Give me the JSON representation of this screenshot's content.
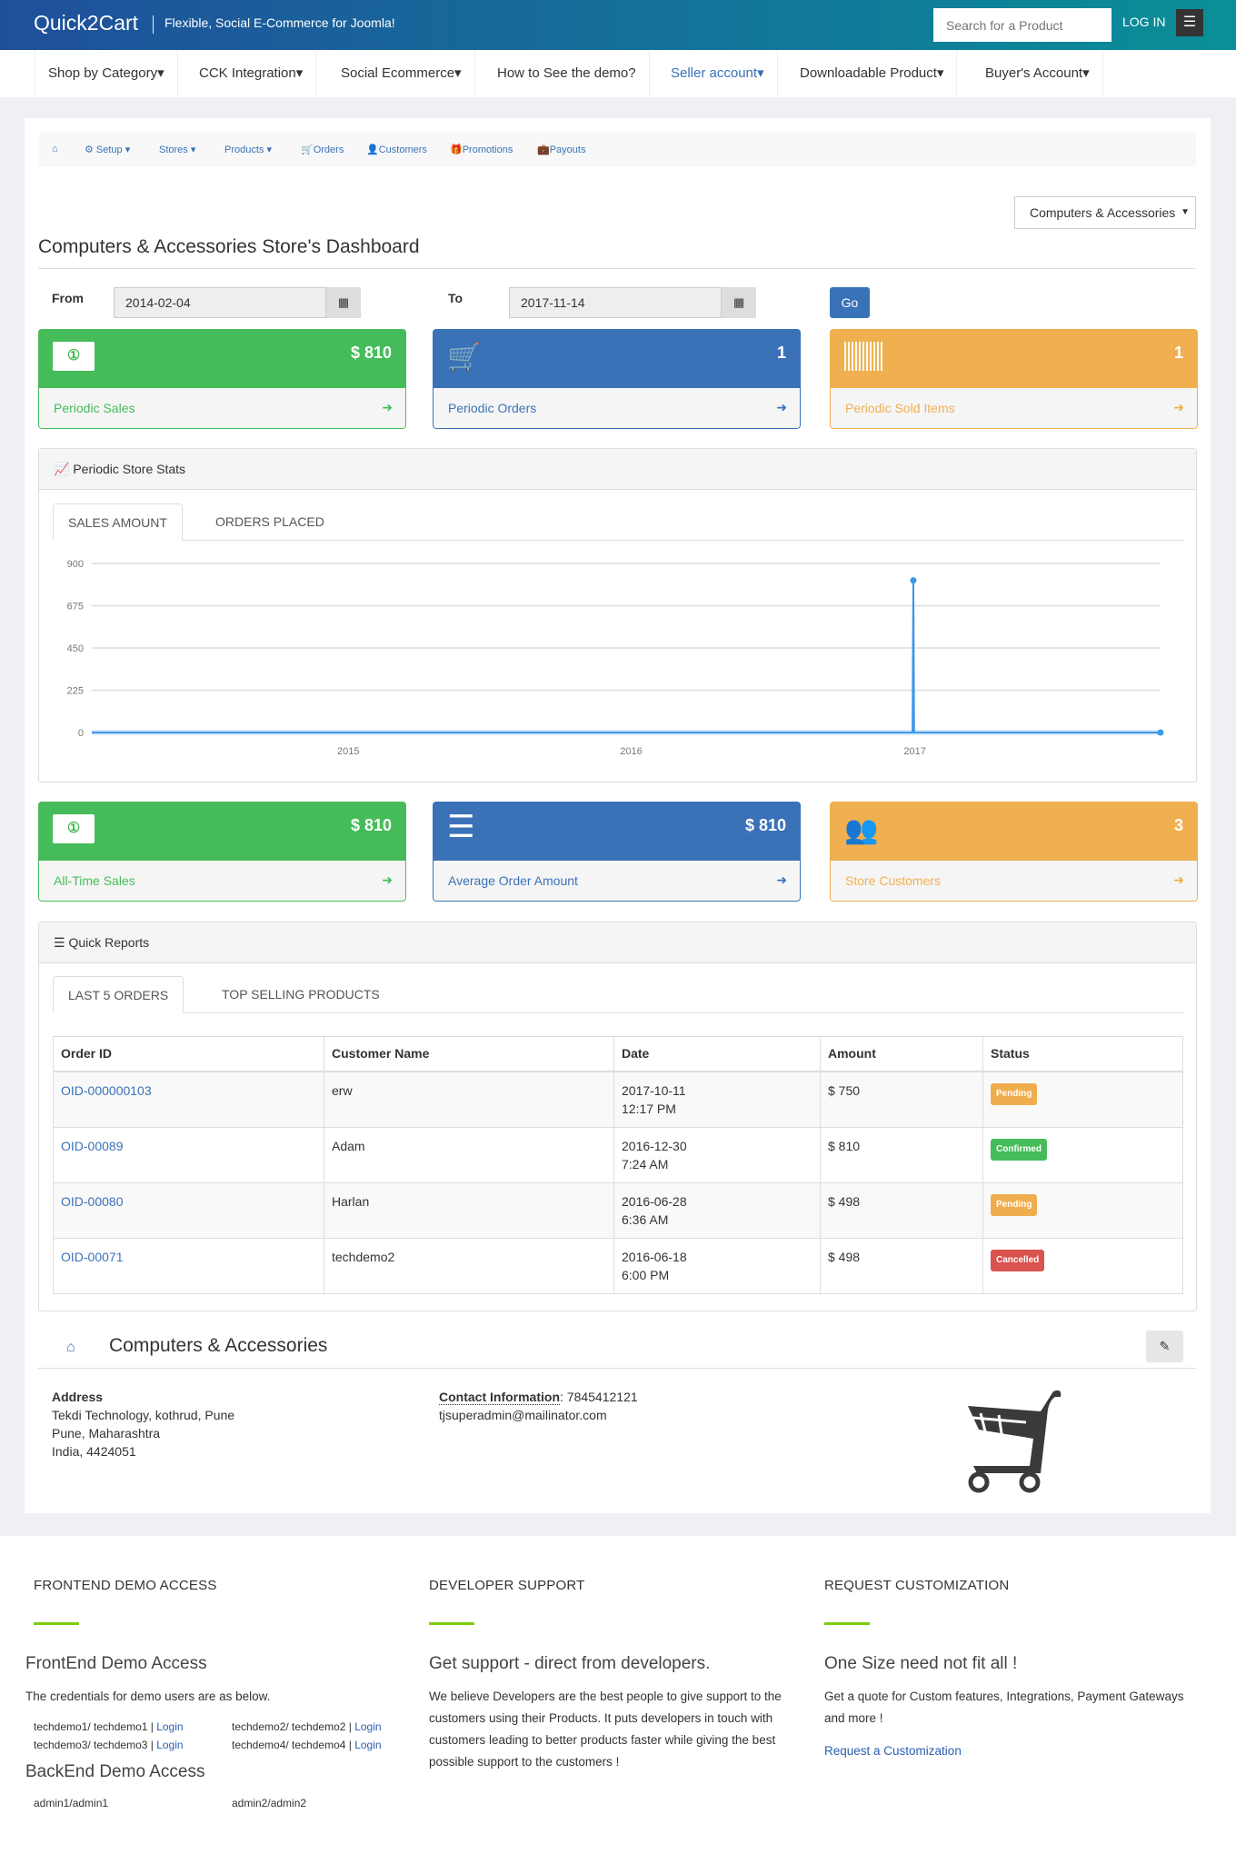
{
  "header": {
    "logo": "Quick2Cart",
    "tagline": "Flexible, Social E-Commerce for Joomla!",
    "search_placeholder": "Search for a Product",
    "login": "LOG IN",
    "menu_icon": "hamburger-icon"
  },
  "nav": [
    "Shop by Category",
    "CCK Integration",
    "Social Ecommerce",
    "How to See the demo?",
    "Seller account",
    "Downloadable Product",
    "Buyer's Account"
  ],
  "subnav": {
    "home_icon": "home-icon",
    "items": [
      "Setup",
      "Stores",
      "Products",
      "Orders",
      "Customers",
      "Promotions",
      "Payouts"
    ]
  },
  "store_select": "Computers & Accessories",
  "page_title": "Computers & Accessories Store's Dashboard",
  "filter": {
    "from_label": "From",
    "from_value": "2014-02-04",
    "to_label": "To",
    "to_value": "2017-11-14",
    "go": "Go"
  },
  "cards_periodic": [
    {
      "value": "$ 810",
      "label": "Periodic Sales",
      "icon": "money-icon"
    },
    {
      "value": "1",
      "label": "Periodic Orders",
      "icon": "cart-icon"
    },
    {
      "value": "1",
      "label": "Periodic Sold Items",
      "icon": "barcode-icon"
    }
  ],
  "stats": {
    "title": "Periodic Store Stats",
    "tabs": [
      "SALES AMOUNT",
      "ORDERS PLACED"
    ]
  },
  "chart_data": {
    "type": "line",
    "x_type": "date",
    "xlim": [
      "2014-02-04",
      "2017-11-14"
    ],
    "ylim": [
      0,
      900
    ],
    "yticks": [
      "0",
      "225",
      "450",
      "675",
      "900"
    ],
    "xticks": [
      "2015",
      "2016",
      "2017"
    ],
    "grid": true,
    "series": [
      {
        "points": [
          [
            "2014-02-04",
            0
          ],
          [
            "2016-12-29",
            0
          ],
          [
            "2016-12-30",
            810
          ],
          [
            "2016-12-31",
            0
          ],
          [
            "2017-11-14",
            0
          ]
        ]
      }
    ],
    "color": "#3d97e8"
  },
  "cards_alltime": [
    {
      "value": "$ 810",
      "label": "All-Time Sales",
      "icon": "money-icon"
    },
    {
      "value": "$ 810",
      "label": "Average Order Amount",
      "icon": "list-icon"
    },
    {
      "value": "3",
      "label": "Store Customers",
      "icon": "users-icon"
    }
  ],
  "reports": {
    "title": "Quick Reports",
    "tabs": [
      "LAST 5 ORDERS",
      "TOP SELLING PRODUCTS"
    ],
    "columns": [
      "Order ID",
      "Customer Name",
      "Date",
      "Amount",
      "Status"
    ],
    "rows": [
      {
        "id": "OID-000000103",
        "customer": "erw",
        "date": "2017-10-11",
        "time": "12:17 PM",
        "amount": "$ 750",
        "status": "Pending",
        "color": "#f0ad4e"
      },
      {
        "id": "OID-00089",
        "customer": "Adam",
        "date": "2016-12-30",
        "time": "7:24 AM",
        "amount": "$ 810",
        "status": "Confirmed",
        "color": "#45bc59"
      },
      {
        "id": "OID-00080",
        "customer": "Harlan",
        "date": "2016-06-28",
        "time": "6:36 AM",
        "amount": "$ 498",
        "status": "Pending",
        "color": "#f0ad4e"
      },
      {
        "id": "OID-00071",
        "customer": "techdemo2",
        "date": "2016-06-18",
        "time": "6:00 PM",
        "amount": "$ 498",
        "status": "Cancelled",
        "color": "#d9534f"
      }
    ]
  },
  "store": {
    "name": "Computers & Accessories",
    "address_label": "Address",
    "address": [
      "Tekdi Technology, kothrud, Pune",
      "Pune, Maharashtra",
      "India, 4424051"
    ],
    "contact_label": "Contact Information",
    "phone": ": 7845412121",
    "email": "tjsuperadmin@mailinator.com"
  },
  "footer": {
    "col1": {
      "heading": "FRONTEND DEMO ACCESS",
      "sub": "FrontEnd Demo Access",
      "text": "The credentials for demo users are as below.",
      "creds": [
        "techdemo1/ techdemo1 | ",
        "techdemo2/ techdemo2 | ",
        "techdemo3/ techdemo3 | ",
        "techdemo4/ techdemo4 | "
      ],
      "login": "Login",
      "sub2": "BackEnd Demo Access",
      "admins": [
        "admin1/admin1",
        "admin2/admin2"
      ]
    },
    "col2": {
      "heading": "DEVELOPER SUPPORT",
      "sub": "Get support - direct from developers.",
      "text": "We believe Developers are the best people to give support to the customers using their Products. It puts developers in touch with customers leading to better products faster while giving the best possible support to the customers !"
    },
    "col3": {
      "heading": "REQUEST CUSTOMIZATION",
      "sub": "One Size need not fit all !",
      "text": "Get a quote for Custom features, Integrations, Payment Gateways and more !",
      "link": "Request a Customization"
    }
  }
}
